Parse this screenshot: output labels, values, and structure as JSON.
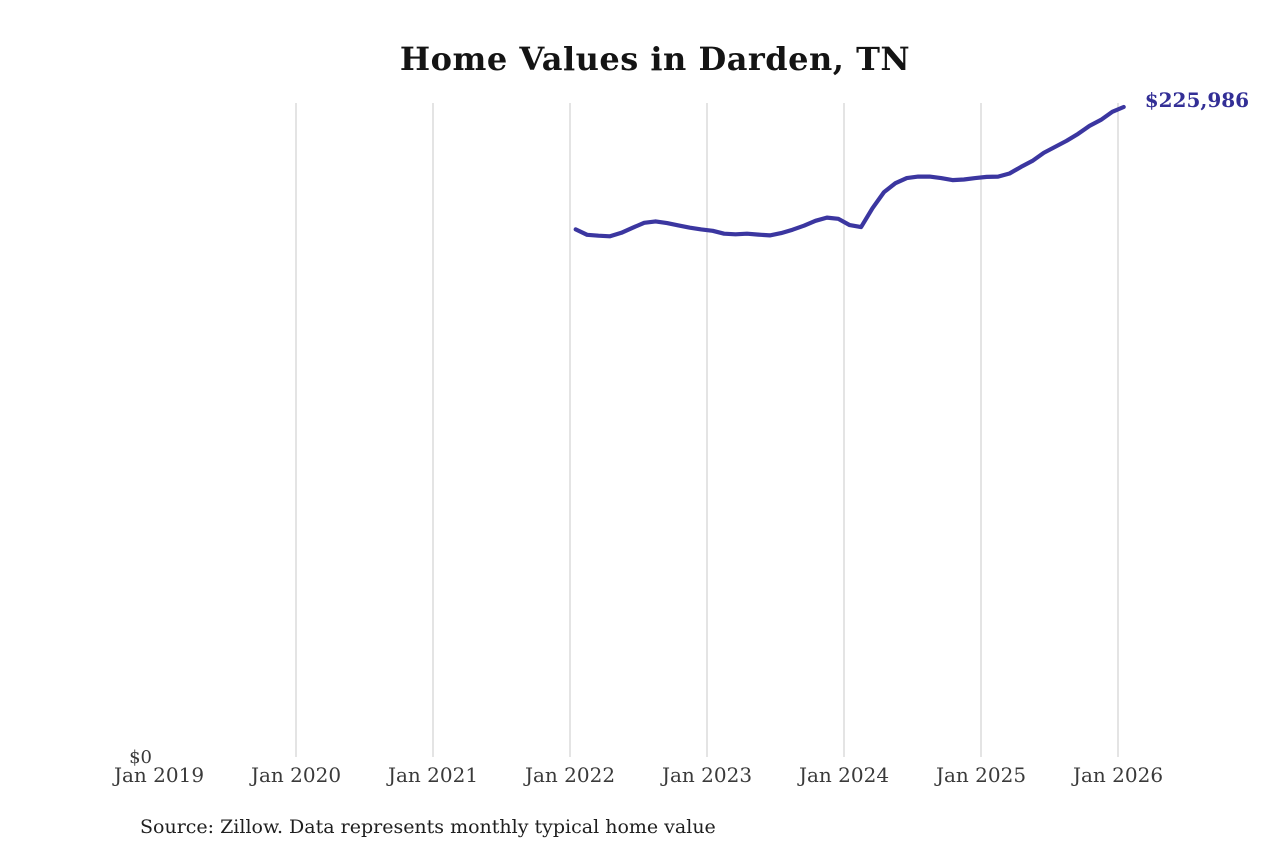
{
  "page": {
    "background": "#ffffff"
  },
  "chart_data": {
    "type": "line",
    "title": "Home Values in Darden, TN",
    "end_label": "$225,986",
    "source_note": "Source: Zillow. Data represents monthly typical home value",
    "y_axis": {
      "zero_label": "$0",
      "min": 0,
      "top_value": 225986
    },
    "x_tick_labels": [
      "Jan 2019",
      "Jan 2020",
      "Jan 2021",
      "Jan 2022",
      "Jan 2023",
      "Jan 2024",
      "Jan 2025",
      "Jan 2026"
    ],
    "gridlines_at_labels": [
      "Jan 2020",
      "Jan 2021",
      "Jan 2022",
      "Jan 2023",
      "Jan 2024",
      "Jan 2025",
      "Jan 2026"
    ],
    "colors": {
      "line": "#3b36a0",
      "end_label": "#332f96",
      "gridline": "#c9c9c9",
      "axis_text": "#3a3a3a"
    },
    "series": [
      {
        "name": "Typical home value",
        "start_month": "Jan 2022",
        "end_month": "Jan 2026",
        "x_months": [
          "Jan 2022",
          "Feb 2022",
          "Mar 2022",
          "Apr 2022",
          "May 2022",
          "Jun 2022",
          "Jul 2022",
          "Aug 2022",
          "Sep 2022",
          "Oct 2022",
          "Nov 2022",
          "Dec 2022",
          "Jan 2023",
          "Feb 2023",
          "Mar 2023",
          "Apr 2023",
          "May 2023",
          "Jun 2023",
          "Jul 2023",
          "Aug 2023",
          "Sep 2023",
          "Oct 2023",
          "Nov 2023",
          "Dec 2023",
          "Jan 2024",
          "Feb 2024",
          "Mar 2024",
          "Apr 2024",
          "May 2024",
          "Jun 2024",
          "Jul 2024",
          "Aug 2024",
          "Sep 2024",
          "Oct 2024",
          "Nov 2024",
          "Dec 2024",
          "Jan 2025",
          "Feb 2025",
          "Mar 2025",
          "Apr 2025",
          "May 2025",
          "Jun 2025",
          "Jul 2025",
          "Aug 2025",
          "Sep 2025",
          "Oct 2025",
          "Nov 2025",
          "Dec 2025",
          "Jan 2026"
        ],
        "monthly_values": [
          183300,
          181400,
          181100,
          180900,
          182100,
          183900,
          185600,
          186100,
          185500,
          184700,
          183900,
          183300,
          182800,
          181800,
          181600,
          181800,
          181500,
          181200,
          182000,
          183200,
          184600,
          186300,
          187400,
          187000,
          184800,
          184100,
          190700,
          196300,
          199400,
          201200,
          201700,
          201700,
          201200,
          200500,
          200700,
          201200,
          201600,
          201700,
          202800,
          205100,
          207200,
          210000,
          212100,
          214200,
          216600,
          219400,
          221500,
          224300,
          225986
        ]
      }
    ]
  }
}
